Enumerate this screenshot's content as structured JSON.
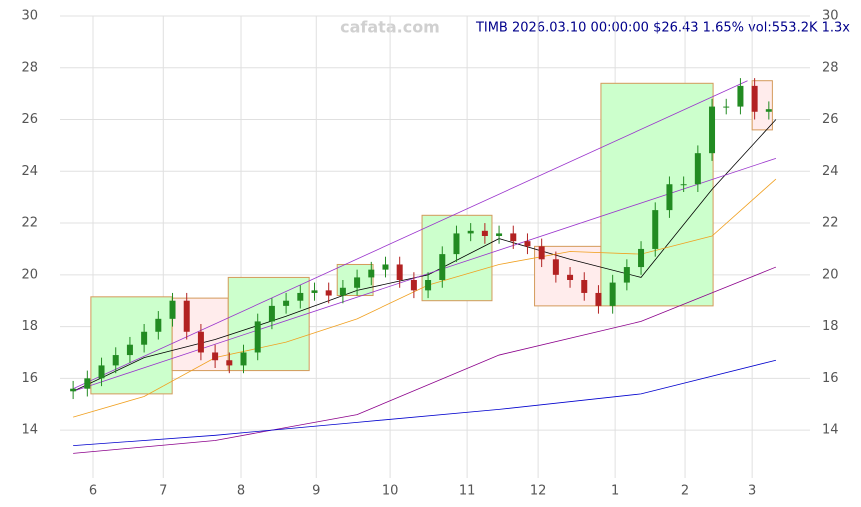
{
  "chart_data": {
    "type": "candlestick",
    "title": "TIMB 2026.03.10 00:00:00 $26.43 1.65% vol:553.2K 1.3x",
    "watermark": "cafata.com",
    "x": [
      0,
      4,
      8,
      12,
      16,
      20,
      24,
      28,
      32,
      36,
      40,
      44,
      48,
      52,
      56,
      60,
      64,
      68,
      72,
      76,
      80,
      84,
      88,
      92,
      96,
      100,
      104,
      108,
      112,
      116,
      120,
      124,
      128,
      132,
      136,
      140,
      144,
      148,
      152,
      156,
      160,
      164,
      168,
      172,
      176,
      180,
      184,
      188,
      192,
      196
    ],
    "open": [
      15.5,
      15.6,
      16.0,
      16.5,
      16.9,
      17.3,
      17.8,
      18.3,
      19.0,
      17.8,
      17.0,
      16.7,
      16.5,
      17.0,
      18.2,
      18.8,
      19.0,
      19.3,
      19.4,
      19.2,
      19.5,
      19.9,
      20.2,
      20.4,
      19.8,
      19.4,
      19.8,
      20.8,
      21.6,
      21.7,
      21.5,
      21.6,
      21.3,
      21.1,
      20.6,
      20.0,
      19.8,
      19.3,
      18.8,
      19.7,
      20.3,
      21.0,
      22.5,
      23.5,
      23.5,
      24.7,
      26.5,
      26.5,
      27.3,
      26.3
    ],
    "high": [
      15.9,
      16.3,
      16.8,
      17.2,
      17.6,
      18.1,
      18.6,
      19.3,
      19.3,
      18.1,
      17.3,
      17.0,
      17.3,
      18.5,
      19.1,
      19.3,
      19.6,
      19.7,
      19.7,
      19.8,
      20.2,
      20.5,
      20.7,
      20.7,
      20.1,
      20.1,
      21.1,
      21.9,
      22.0,
      22.0,
      21.9,
      21.9,
      21.6,
      21.4,
      20.9,
      20.3,
      20.1,
      19.6,
      20.0,
      20.6,
      21.3,
      22.8,
      23.8,
      23.8,
      25.0,
      26.8,
      26.8,
      27.6,
      27.6,
      26.7
    ],
    "low": [
      15.2,
      15.3,
      15.7,
      16.2,
      16.6,
      17.0,
      17.5,
      18.0,
      17.5,
      16.7,
      16.4,
      16.2,
      16.2,
      16.7,
      17.9,
      18.5,
      18.7,
      19.0,
      18.9,
      18.9,
      19.2,
      19.6,
      19.9,
      19.5,
      19.1,
      19.1,
      19.5,
      20.5,
      21.3,
      21.2,
      21.2,
      21.0,
      20.8,
      20.3,
      19.7,
      19.5,
      19.0,
      18.5,
      18.5,
      19.4,
      20.0,
      20.7,
      22.2,
      23.2,
      23.2,
      24.4,
      26.2,
      26.2,
      26.0,
      26.0
    ],
    "close": [
      15.6,
      16.0,
      16.5,
      16.9,
      17.3,
      17.8,
      18.3,
      19.0,
      17.8,
      17.0,
      16.7,
      16.5,
      17.0,
      18.2,
      18.8,
      19.0,
      19.3,
      19.4,
      19.2,
      19.5,
      19.9,
      20.2,
      20.4,
      19.8,
      19.4,
      19.8,
      20.8,
      21.6,
      21.7,
      21.5,
      21.6,
      21.3,
      21.1,
      20.6,
      20.0,
      19.8,
      19.3,
      18.8,
      19.7,
      20.3,
      21.0,
      22.5,
      23.5,
      23.5,
      24.7,
      26.5,
      26.5,
      27.3,
      26.3,
      26.4
    ],
    "up_color": "#228b22",
    "down_color": "#b22222",
    "lines": [
      {
        "color": "#000000",
        "x": [
          0,
          20,
          40,
          60,
          80,
          100,
          120,
          140,
          160,
          180,
          198
        ],
        "values": [
          15.5,
          16.8,
          17.5,
          18.4,
          19.4,
          20.0,
          21.4,
          20.6,
          19.9,
          23.3,
          26.0
        ]
      },
      {
        "color": "#f0a020",
        "x": [
          0,
          20,
          40,
          60,
          80,
          100,
          120,
          140,
          160,
          180,
          198
        ],
        "values": [
          14.5,
          15.3,
          16.8,
          17.4,
          18.3,
          19.6,
          20.4,
          20.9,
          20.8,
          21.5,
          23.7
        ]
      },
      {
        "color": "#8b008b",
        "x": [
          0,
          40,
          80,
          120,
          160,
          198
        ],
        "values": [
          13.1,
          13.6,
          14.6,
          16.9,
          18.2,
          20.3
        ]
      },
      {
        "color": "#0000cd",
        "x": [
          0,
          40,
          80,
          120,
          160,
          198
        ],
        "values": [
          13.4,
          13.8,
          14.3,
          14.8,
          15.4,
          16.7
        ]
      },
      {
        "color": "#9932cc",
        "x": [
          0,
          190
        ],
        "values": [
          15.6,
          27.5
        ]
      },
      {
        "color": "#9932cc",
        "x": [
          0,
          198
        ],
        "values": [
          15.5,
          24.5
        ]
      }
    ],
    "zones": [
      {
        "x0": 5,
        "x1": 27.9,
        "ylo": 15.4,
        "yhi": 19.15,
        "color": "#ccffcc"
      },
      {
        "x0": 27.9,
        "x1": 43.7,
        "ylo": 16.3,
        "yhi": 19.1,
        "color": "#ffecec"
      },
      {
        "x0": 43.7,
        "x1": 66.5,
        "ylo": 16.3,
        "yhi": 19.9,
        "color": "#ccffcc"
      },
      {
        "x0": 74.4,
        "x1": 84.5,
        "ylo": 19.2,
        "yhi": 20.4,
        "color": "#ccffcc"
      },
      {
        "x0": 98.3,
        "x1": 118,
        "ylo": 19.0,
        "yhi": 22.3,
        "color": "#ccffcc"
      },
      {
        "x0": 130,
        "x1": 148.7,
        "ylo": 18.8,
        "yhi": 21.1,
        "color": "#ffecec"
      },
      {
        "x0": 148.7,
        "x1": 180.3,
        "ylo": 18.8,
        "yhi": 27.4,
        "color": "#ccffcc"
      },
      {
        "x0": 191.3,
        "x1": 197,
        "ylo": 25.6,
        "yhi": 27.5,
        "color": "#ffecec"
      }
    ],
    "xlim": [
      -3.7,
      207.6
    ],
    "xticks": [
      {
        "value": 5.6,
        "label": "6"
      },
      {
        "value": 25.4,
        "label": "7"
      },
      {
        "value": 47.3,
        "label": "8"
      },
      {
        "value": 68.5,
        "label": "9"
      },
      {
        "value": 89.3,
        "label": "10"
      },
      {
        "value": 111,
        "label": "11"
      },
      {
        "value": 131,
        "label": "12"
      },
      {
        "value": 152.7,
        "label": "1"
      },
      {
        "value": 172.4,
        "label": "2"
      },
      {
        "value": 191.3,
        "label": "3"
      }
    ],
    "ylim": [
      12.15,
      30
    ],
    "yticks": [
      14,
      16,
      18,
      20,
      22,
      24,
      26,
      28,
      30
    ],
    "grid": true
  }
}
